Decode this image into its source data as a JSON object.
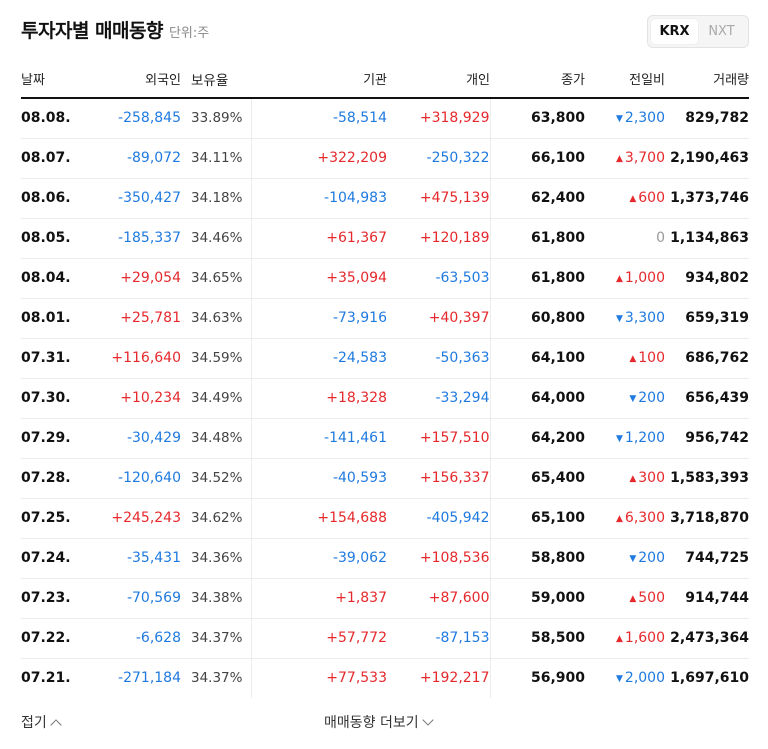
{
  "header": {
    "title": "투자자별 매매동향",
    "unit": "단위:주"
  },
  "market_toggle": {
    "options": [
      "KRX",
      "NXT"
    ],
    "selected": "KRX"
  },
  "columns": [
    "날짜",
    "외국인",
    "보유율",
    "기관",
    "개인",
    "종가",
    "전일비",
    "거래량"
  ],
  "colors": {
    "up": "#e5292c",
    "down": "#1f7ae0",
    "flat": "#999999"
  },
  "rows": [
    {
      "date": "08.08.",
      "foreign": "-258,845",
      "hold": "33.89%",
      "inst": "-58,514",
      "indiv": "+318,929",
      "close": "63,800",
      "chg_dir": "down",
      "chg": "2,300",
      "volume": "829,782"
    },
    {
      "date": "08.07.",
      "foreign": "-89,072",
      "hold": "34.11%",
      "inst": "+322,209",
      "indiv": "-250,322",
      "close": "66,100",
      "chg_dir": "up",
      "chg": "3,700",
      "volume": "2,190,463"
    },
    {
      "date": "08.06.",
      "foreign": "-350,427",
      "hold": "34.18%",
      "inst": "-104,983",
      "indiv": "+475,139",
      "close": "62,400",
      "chg_dir": "up",
      "chg": "600",
      "volume": "1,373,746"
    },
    {
      "date": "08.05.",
      "foreign": "-185,337",
      "hold": "34.46%",
      "inst": "+61,367",
      "indiv": "+120,189",
      "close": "61,800",
      "chg_dir": "flat",
      "chg": "0",
      "volume": "1,134,863"
    },
    {
      "date": "08.04.",
      "foreign": "+29,054",
      "hold": "34.65%",
      "inst": "+35,094",
      "indiv": "-63,503",
      "close": "61,800",
      "chg_dir": "up",
      "chg": "1,000",
      "volume": "934,802"
    },
    {
      "date": "08.01.",
      "foreign": "+25,781",
      "hold": "34.63%",
      "inst": "-73,916",
      "indiv": "+40,397",
      "close": "60,800",
      "chg_dir": "down",
      "chg": "3,300",
      "volume": "659,319"
    },
    {
      "date": "07.31.",
      "foreign": "+116,640",
      "hold": "34.59%",
      "inst": "-24,583",
      "indiv": "-50,363",
      "close": "64,100",
      "chg_dir": "up",
      "chg": "100",
      "volume": "686,762"
    },
    {
      "date": "07.30.",
      "foreign": "+10,234",
      "hold": "34.49%",
      "inst": "+18,328",
      "indiv": "-33,294",
      "close": "64,000",
      "chg_dir": "down",
      "chg": "200",
      "volume": "656,439"
    },
    {
      "date": "07.29.",
      "foreign": "-30,429",
      "hold": "34.48%",
      "inst": "-141,461",
      "indiv": "+157,510",
      "close": "64,200",
      "chg_dir": "down",
      "chg": "1,200",
      "volume": "956,742"
    },
    {
      "date": "07.28.",
      "foreign": "-120,640",
      "hold": "34.52%",
      "inst": "-40,593",
      "indiv": "+156,337",
      "close": "65,400",
      "chg_dir": "up",
      "chg": "300",
      "volume": "1,583,393"
    },
    {
      "date": "07.25.",
      "foreign": "+245,243",
      "hold": "34.62%",
      "inst": "+154,688",
      "indiv": "-405,942",
      "close": "65,100",
      "chg_dir": "up",
      "chg": "6,300",
      "volume": "3,718,870"
    },
    {
      "date": "07.24.",
      "foreign": "-35,431",
      "hold": "34.36%",
      "inst": "-39,062",
      "indiv": "+108,536",
      "close": "58,800",
      "chg_dir": "down",
      "chg": "200",
      "volume": "744,725"
    },
    {
      "date": "07.23.",
      "foreign": "-70,569",
      "hold": "34.38%",
      "inst": "+1,837",
      "indiv": "+87,600",
      "close": "59,000",
      "chg_dir": "up",
      "chg": "500",
      "volume": "914,744"
    },
    {
      "date": "07.22.",
      "foreign": "-6,628",
      "hold": "34.37%",
      "inst": "+57,772",
      "indiv": "-87,153",
      "close": "58,500",
      "chg_dir": "up",
      "chg": "1,600",
      "volume": "2,473,364"
    },
    {
      "date": "07.21.",
      "foreign": "-271,184",
      "hold": "34.37%",
      "inst": "+77,533",
      "indiv": "+192,217",
      "close": "56,900",
      "chg_dir": "down",
      "chg": "2,000",
      "volume": "1,697,610"
    }
  ],
  "footer": {
    "fold_label": "접기",
    "more_label": "매매동향 더보기"
  },
  "icons": {
    "up": "caret-up-icon",
    "down": "caret-down-icon",
    "fold": "chevron-up-icon",
    "more": "chevron-down-icon"
  }
}
